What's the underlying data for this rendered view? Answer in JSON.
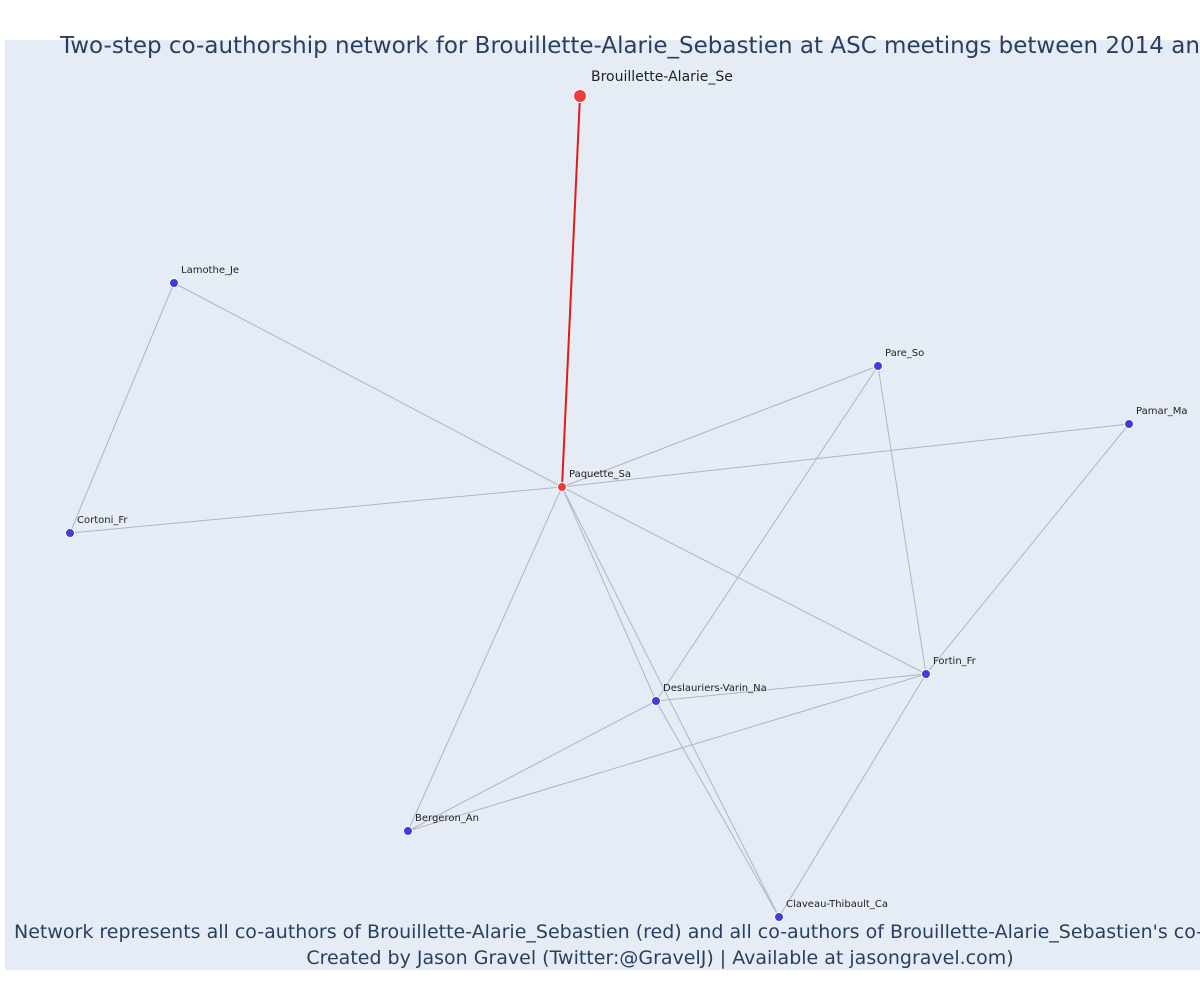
{
  "header": {
    "title": "Two-step co-authorship network for Brouillette-Alarie_Sebastien at ASC meetings between 2014 an"
  },
  "nodes": [
    {
      "label": "Brouillette-Alarie_Se",
      "color": "#ef3b3b"
    },
    {
      "label": "Paquette_Sa",
      "color": "#ef3b3b"
    },
    {
      "label": "Lamothe_Je",
      "color": "#3d3de0"
    },
    {
      "label": "Cortoni_Fr",
      "color": "#3d3de0"
    },
    {
      "label": "Pare_So",
      "color": "#3d3de0"
    },
    {
      "label": "Pamar_Ma",
      "color": "#3d3de0"
    },
    {
      "label": "Fortin_Fr",
      "color": "#3d3de0"
    },
    {
      "label": "Deslauriers-Varin_Na",
      "color": "#3d3de0"
    },
    {
      "label": "Bergeron_An",
      "color": "#3d3de0"
    },
    {
      "label": "Claveau-Thibault_Ca",
      "color": "#3d3de0"
    }
  ],
  "footer": {
    "lines": [
      "Network represents all co-authors of Brouillette-Alarie_Sebastien (red) and all co-authors of Brouillette-Alarie_Sebastien's co-aut",
      "Created by Jason Gravel (Twitter:@GravelJ) | Available at jasongravel.com)"
    ]
  }
}
